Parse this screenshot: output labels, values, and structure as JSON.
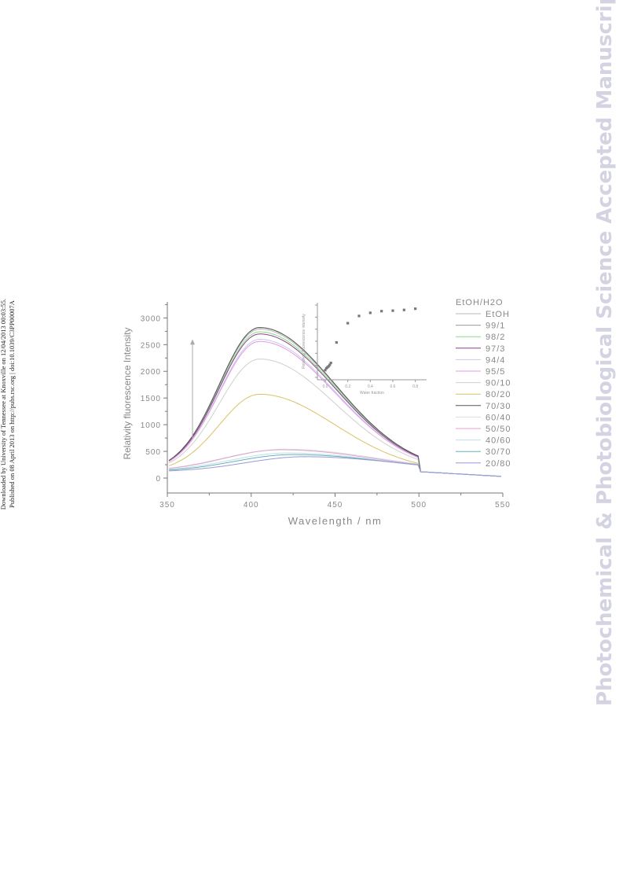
{
  "side_note": {
    "line1": "Downloaded by University of Tennessee at Knoxville on 12/04/2013 00:03:55.",
    "line2": "Published on 08 April 2013 on http://pubs.rsc.org | doi:10.1039/C3PP00007A"
  },
  "watermark": "Photochemical & Photobiological Science Accepted Manuscript",
  "chart_data": {
    "type": "line",
    "title": "",
    "xlabel": "Wavelength / nm",
    "ylabel": "Relativity fluorescence Intensity",
    "xlim": [
      350,
      550
    ],
    "ylim": [
      -280,
      3300
    ],
    "xticks": [
      350,
      400,
      450,
      500,
      550
    ],
    "yticks": [
      0,
      500,
      1000,
      1500,
      2000,
      2500,
      3000
    ],
    "legend_title": "EtOH/H2O",
    "legend_placement": "right",
    "annotation": "upward arrow at 365 nm indicating increasing intensity",
    "series": [
      {
        "name": "EtOH",
        "color": "#b8b8b8",
        "peak_x": 405,
        "peak_y": 2790
      },
      {
        "name": "99/1",
        "color": "#9a9a9a",
        "peak_x": 405,
        "peak_y": 2820
      },
      {
        "name": "98/2",
        "color": "#88dd88",
        "peak_x": 405,
        "peak_y": 2740
      },
      {
        "name": "97/3",
        "color": "#8a3f8a",
        "peak_x": 405,
        "peak_y": 2700
      },
      {
        "name": "94/4",
        "color": "#c8c8ee",
        "peak_x": 405,
        "peak_y": 2600
      },
      {
        "name": "95/5",
        "color": "#e699e6",
        "peak_x": 405,
        "peak_y": 2560
      },
      {
        "name": "90/10",
        "color": "#cfcfcf",
        "peak_x": 405,
        "peak_y": 2230
      },
      {
        "name": "80/20",
        "color": "#d9c266",
        "peak_x": 405,
        "peak_y": 1570
      },
      {
        "name": "70/30",
        "color": "#555555",
        "peak_x": 405,
        "peak_y": 2820
      },
      {
        "name": "60/40",
        "color": "#dddddd",
        "peak_x": 420,
        "peak_y": 540
      },
      {
        "name": "50/50",
        "color": "#e0a3d0",
        "peak_x": 418,
        "peak_y": 530
      },
      {
        "name": "40/60",
        "color": "#bfe0ea",
        "peak_x": 422,
        "peak_y": 470
      },
      {
        "name": "30/70",
        "color": "#66b3b3",
        "peak_x": 425,
        "peak_y": 440
      },
      {
        "name": "20/80",
        "color": "#9999dd",
        "peak_x": 432,
        "peak_y": 400
      }
    ],
    "inset": {
      "type": "scatter",
      "xlabel": "Water fraction",
      "ylabel": "Relativity fluorescence intensity",
      "xticks": [
        "0.0",
        "0.2",
        "0.4",
        "0.6",
        "0.8"
      ],
      "x": [
        0.0,
        0.01,
        0.02,
        0.03,
        0.04,
        0.05,
        0.1,
        0.2,
        0.3,
        0.4,
        0.5,
        0.6,
        0.7,
        0.8
      ],
      "y": [
        400,
        480,
        520,
        560,
        620,
        700,
        1550,
        2350,
        2650,
        2780,
        2850,
        2870,
        2900,
        2950
      ],
      "ylim": [
        0,
        3200
      ]
    }
  }
}
